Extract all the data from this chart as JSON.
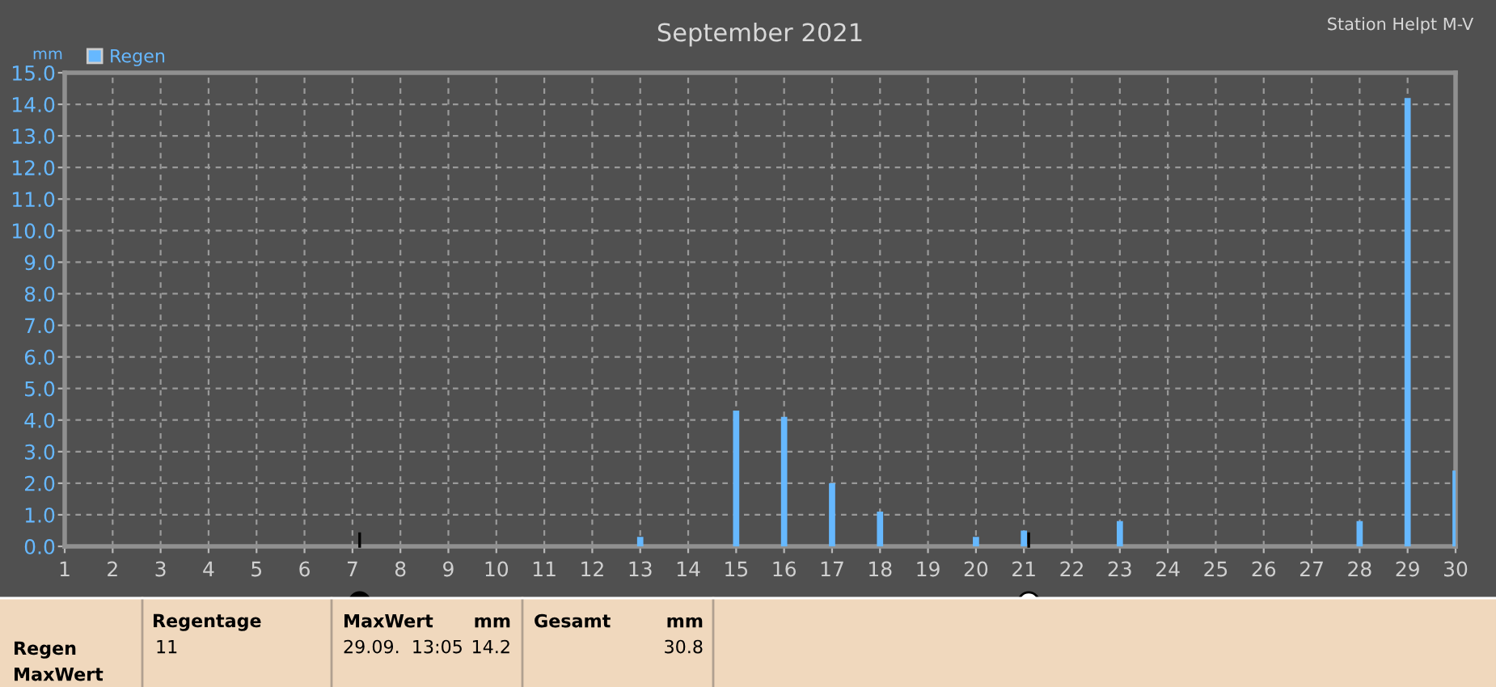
{
  "chart_data": {
    "type": "bar",
    "title": "September 2021",
    "subtitle": "Station Helpt M-V",
    "ylabel": "mm",
    "x": [
      13,
      15,
      16,
      17,
      18,
      20,
      21,
      23,
      28,
      29,
      30
    ],
    "series": [
      {
        "name": "Regen",
        "color": "#66b8ff",
        "values": [
          0.3,
          4.3,
          4.1,
          2.0,
          1.1,
          0.3,
          0.5,
          0.8,
          0.8,
          14.2,
          2.4
        ]
      }
    ],
    "xlim": [
      1,
      30
    ],
    "xticks": [
      1,
      2,
      3,
      4,
      5,
      6,
      7,
      8,
      9,
      10,
      11,
      12,
      13,
      14,
      15,
      16,
      17,
      18,
      19,
      20,
      21,
      22,
      23,
      24,
      25,
      26,
      27,
      28,
      29,
      30
    ],
    "ylim": [
      0,
      15
    ],
    "yticks": [
      {
        "value": 0,
        "label": "0.0"
      },
      {
        "value": 1,
        "label": "1.0"
      },
      {
        "value": 2,
        "label": "2.0"
      },
      {
        "value": 3,
        "label": "3.0"
      },
      {
        "value": 4,
        "label": "4.0"
      },
      {
        "value": 5,
        "label": "5.0"
      },
      {
        "value": 6,
        "label": "6.0"
      },
      {
        "value": 7,
        "label": "7.0"
      },
      {
        "value": 8,
        "label": "8.0"
      },
      {
        "value": 9,
        "label": "9.0"
      },
      {
        "value": 10,
        "label": "10.0"
      },
      {
        "value": 11,
        "label": "11.0"
      },
      {
        "value": 12,
        "label": "12.0"
      },
      {
        "value": 13,
        "label": "13.0"
      },
      {
        "value": 14,
        "label": "14.0"
      },
      {
        "value": 15,
        "label": "15.0"
      }
    ],
    "grid": true,
    "legend": "top left",
    "annotations": [
      "Regen",
      "MaxWert",
      "Regentage",
      "11",
      "MaxWert",
      "mm",
      "29.09.  13:05",
      "14.2",
      "Gesamt",
      "mm",
      "30.8"
    ]
  }
}
